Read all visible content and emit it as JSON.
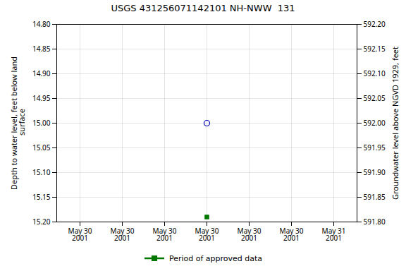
{
  "chart_data": {
    "type": "scatter",
    "title": "USGS 431256071142101 NH-NWW  131",
    "ylabel": "Depth to water level, feet below land\n surface",
    "y2label": "Groundwater level above NGVD 1929, feet",
    "categories": [
      "May 30\n2001",
      "May 30\n2001",
      "May 30\n2001",
      "May 30\n2001",
      "May 30\n2001",
      "May 30\n2001",
      "May 31\n2001"
    ],
    "series": [
      {
        "color": "#0000bb",
        "marker": "circle",
        "values": [
          null,
          null,
          null,
          15.0,
          null,
          null,
          null
        ]
      },
      {
        "name": "Period of approved data",
        "color": "#007700",
        "marker": "square",
        "values": [
          null,
          null,
          null,
          15.19,
          null,
          null,
          null
        ]
      }
    ],
    "ylim": [
      15.2,
      14.8
    ],
    "yticks": [
      {
        "value": 14.8,
        "label": "14.80"
      },
      14.85,
      {
        "value": 14.9,
        "label": "14.90"
      },
      14.95,
      {
        "value": 15.0,
        "label": "15.00"
      },
      15.05,
      {
        "value": 15.1,
        "label": "15.10"
      },
      15.15,
      {
        "value": 15.2,
        "label": "15.20"
      }
    ],
    "y2lim": [
      591.8,
      592.2
    ],
    "y2ticks": [
      {
        "value": 591.8,
        "label": "591.80"
      },
      591.85,
      {
        "value": 591.9,
        "label": "591.90"
      },
      591.95,
      {
        "value": 592.0,
        "label": "592.00"
      },
      592.05,
      {
        "value": 592.1,
        "label": "592.10"
      },
      592.15,
      {
        "value": 592.2,
        "label": "592.20"
      }
    ],
    "grid": true,
    "legend": "bottom"
  }
}
